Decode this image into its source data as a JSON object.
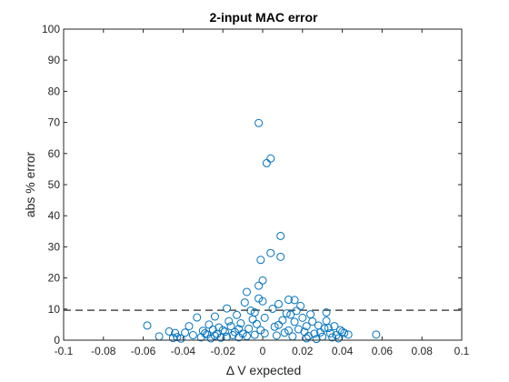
{
  "chart_data": {
    "type": "scatter",
    "title": "2-input MAC error",
    "xlabel": "Δ V expected",
    "ylabel": "abs % error",
    "xlim": [
      -0.1,
      0.1
    ],
    "ylim": [
      0,
      100
    ],
    "xticks": [
      -0.1,
      -0.08,
      -0.06,
      -0.04,
      -0.02,
      0,
      0.02,
      0.04,
      0.06,
      0.08,
      0.1
    ],
    "xtick_labels": [
      "-0.1",
      "-0.08",
      "-0.06",
      "-0.04",
      "-0.02",
      "0",
      "0.02",
      "0.04",
      "0.06",
      "0.08",
      "0.1"
    ],
    "yticks": [
      0,
      10,
      20,
      30,
      40,
      50,
      60,
      70,
      80,
      90,
      100
    ],
    "ytick_labels": [
      "0",
      "10",
      "20",
      "30",
      "40",
      "50",
      "60",
      "70",
      "80",
      "90",
      "100"
    ],
    "grid": false,
    "marker": "open-circle",
    "marker_color": "#0072BD",
    "reference_line": {
      "y": 9.6,
      "style": "dashed",
      "color": "#4d4d4d"
    },
    "points": [
      [
        -0.058,
        4.7
      ],
      [
        -0.052,
        1.2
      ],
      [
        -0.047,
        2.8
      ],
      [
        -0.045,
        0.7
      ],
      [
        -0.044,
        2.3
      ],
      [
        -0.043,
        1.0
      ],
      [
        -0.041,
        0.5
      ],
      [
        -0.039,
        2.4
      ],
      [
        -0.037,
        4.5
      ],
      [
        -0.035,
        1.6
      ],
      [
        -0.033,
        7.3
      ],
      [
        -0.031,
        0.9
      ],
      [
        -0.03,
        3.0
      ],
      [
        -0.029,
        2.2
      ],
      [
        -0.028,
        1.8
      ],
      [
        -0.027,
        5.0
      ],
      [
        -0.026,
        0.6
      ],
      [
        -0.025,
        3.4
      ],
      [
        -0.024,
        1.4
      ],
      [
        -0.024,
        7.6
      ],
      [
        -0.023,
        2.0
      ],
      [
        -0.022,
        4.1
      ],
      [
        -0.021,
        0.8
      ],
      [
        -0.02,
        3.2
      ],
      [
        -0.019,
        2.7
      ],
      [
        -0.018,
        10.2
      ],
      [
        -0.018,
        1.1
      ],
      [
        -0.017,
        6.1
      ],
      [
        -0.016,
        4.5
      ],
      [
        -0.015,
        1.6
      ],
      [
        -0.014,
        2.6
      ],
      [
        -0.013,
        8.1
      ],
      [
        -0.012,
        3.6
      ],
      [
        -0.012,
        0.9
      ],
      [
        -0.011,
        5.4
      ],
      [
        -0.01,
        2.1
      ],
      [
        -0.009,
        12.1
      ],
      [
        -0.008,
        15.5
      ],
      [
        -0.008,
        1.3
      ],
      [
        -0.007,
        3.7
      ],
      [
        -0.006,
        9.5
      ],
      [
        -0.005,
        6.7
      ],
      [
        -0.004,
        8.9
      ],
      [
        -0.004,
        1.7
      ],
      [
        -0.003,
        5.2
      ],
      [
        -0.002,
        13.4
      ],
      [
        -0.002,
        17.5
      ],
      [
        -0.001,
        3.2
      ],
      [
        -0.001,
        25.8
      ],
      [
        0.0,
        12.5
      ],
      [
        0.0,
        19.2
      ],
      [
        0.001,
        7.2
      ],
      [
        0.001,
        2.2
      ],
      [
        -0.002,
        69.8
      ],
      [
        0.002,
        56.9
      ],
      [
        0.004,
        58.4
      ],
      [
        0.004,
        28.0
      ],
      [
        0.005,
        10.1
      ],
      [
        0.006,
        4.3
      ],
      [
        0.007,
        1.5
      ],
      [
        0.008,
        4.9
      ],
      [
        0.008,
        11.6
      ],
      [
        0.009,
        26.8
      ],
      [
        0.009,
        33.5
      ],
      [
        0.01,
        6.4
      ],
      [
        0.011,
        2.4
      ],
      [
        0.012,
        8.6
      ],
      [
        0.013,
        3.1
      ],
      [
        0.013,
        13.0
      ],
      [
        0.014,
        8.2
      ],
      [
        0.015,
        1.2
      ],
      [
        0.016,
        5.9
      ],
      [
        0.016,
        12.9
      ],
      [
        0.017,
        9.4
      ],
      [
        0.018,
        3.5
      ],
      [
        0.019,
        11.0
      ],
      [
        0.02,
        7.2
      ],
      [
        0.021,
        2.7
      ],
      [
        0.022,
        4.5
      ],
      [
        0.023,
        1.3
      ],
      [
        0.024,
        8.3
      ],
      [
        0.025,
        6.0
      ],
      [
        0.026,
        2.1
      ],
      [
        0.027,
        0.4
      ],
      [
        0.028,
        4.7
      ],
      [
        0.029,
        2.5
      ],
      [
        0.03,
        1.1
      ],
      [
        0.031,
        3.8
      ],
      [
        0.032,
        6.2
      ],
      [
        0.032,
        8.9
      ],
      [
        0.033,
        3.9
      ],
      [
        0.034,
        2.2
      ],
      [
        0.035,
        0.9
      ],
      [
        0.036,
        4.5
      ],
      [
        0.037,
        1.6
      ],
      [
        0.038,
        0.6
      ],
      [
        0.039,
        3.2
      ],
      [
        0.04,
        2.7
      ],
      [
        0.041,
        2.3
      ],
      [
        0.043,
        1.8
      ],
      [
        0.057,
        1.8
      ],
      [
        0.022,
        0.6
      ]
    ]
  }
}
